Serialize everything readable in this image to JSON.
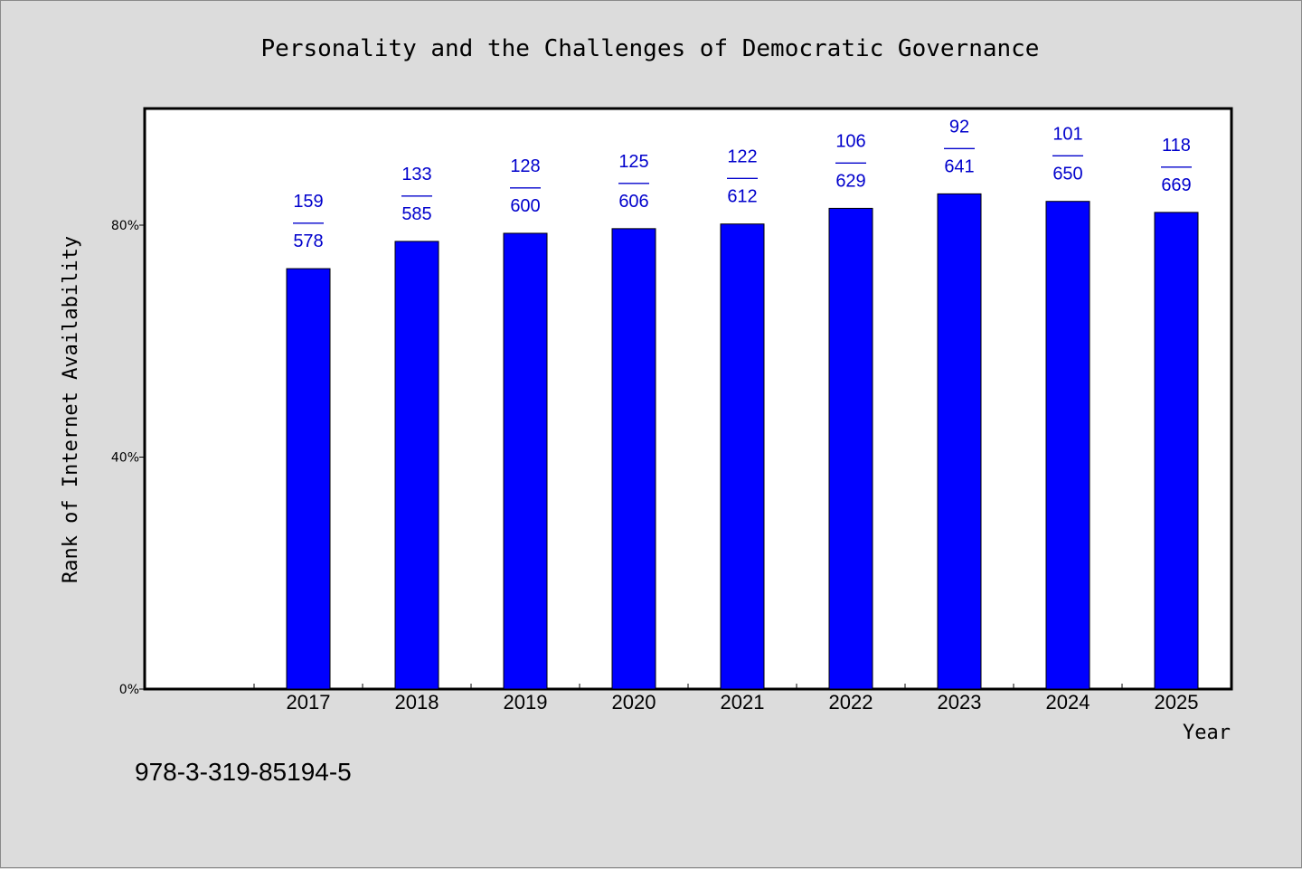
{
  "title": "Personality and the Challenges of Democratic Governance",
  "footer_text": "978-3-319-85194-5",
  "colors": {
    "background": "#dcdcdc",
    "plot_background": "#ffffff",
    "bar": "#0000ff",
    "data_label": "#0000cc"
  },
  "chart_data": {
    "type": "bar",
    "title": "Personality and the Challenges of Democratic Governance",
    "xlabel": "Year",
    "ylabel": "Rank of Internet Availability",
    "categories": [
      "2017",
      "2018",
      "2019",
      "2020",
      "2021",
      "2022",
      "2023",
      "2024",
      "2025"
    ],
    "values": [
      72.5,
      77.2,
      78.6,
      79.4,
      80.2,
      82.9,
      85.4,
      84.1,
      82.2
    ],
    "data_labels": [
      {
        "top": "159",
        "sep": "——",
        "bottom": "578"
      },
      {
        "top": "133",
        "sep": "——",
        "bottom": "585"
      },
      {
        "top": "128",
        "sep": "——",
        "bottom": "600"
      },
      {
        "top": "125",
        "sep": "——",
        "bottom": "606"
      },
      {
        "top": "122",
        "sep": "——",
        "bottom": "612"
      },
      {
        "top": "106",
        "sep": "——",
        "bottom": "629"
      },
      {
        "top": "92",
        "sep": "——",
        "bottom": "641"
      },
      {
        "top": "101",
        "sep": "——",
        "bottom": "650"
      },
      {
        "top": "118",
        "sep": "——",
        "bottom": "669"
      }
    ],
    "yticks": [
      {
        "value": 0,
        "label": "0%"
      },
      {
        "value": 40,
        "label": "40%"
      },
      {
        "value": 80,
        "label": "80%"
      }
    ],
    "ylim": [
      0,
      100
    ],
    "grid": false,
    "legend": "none"
  }
}
